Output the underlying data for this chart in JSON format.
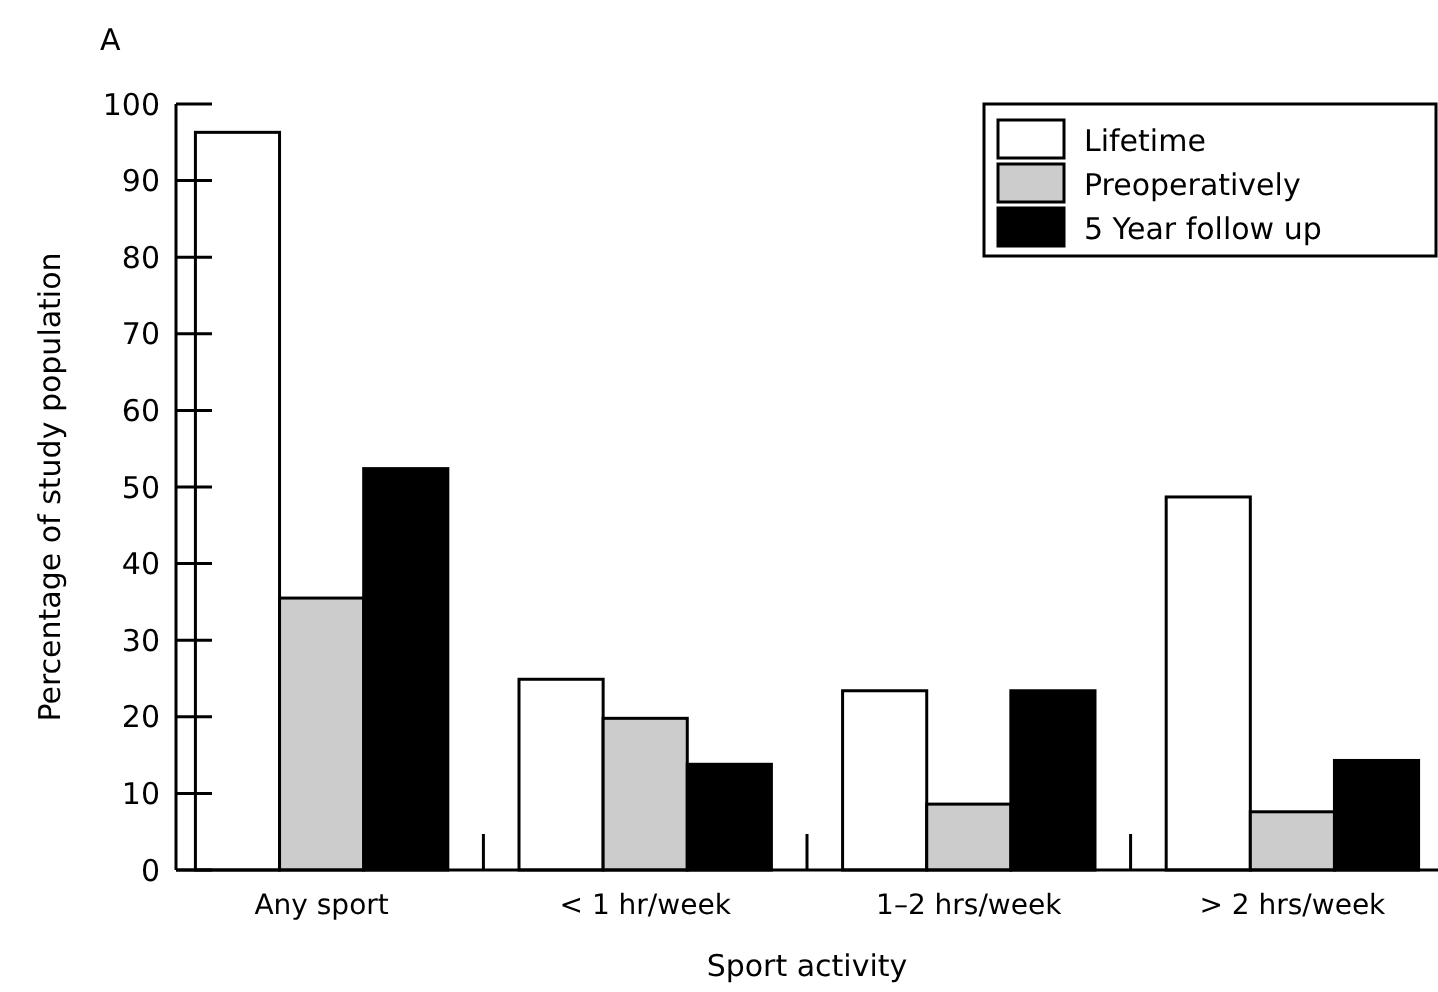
{
  "chart_data": {
    "type": "bar",
    "xlabel": "Sport activity",
    "ylabel": "Percentage of study population",
    "annotations": [
      "A"
    ],
    "categories": [
      "Any sport",
      "< 1 hr/week",
      "1–2 hrs/week",
      "> 2 hrs/week"
    ],
    "series": [
      {
        "name": "Lifetime",
        "color": "#ffffff",
        "values": [
          96.3,
          24.9,
          23.4,
          48.7
        ]
      },
      {
        "name": "Preoperatively",
        "color": "#cccccc",
        "values": [
          35.5,
          19.8,
          8.6,
          7.6
        ]
      },
      {
        "name": "5 Year follow up",
        "color": "#000000",
        "values": [
          52.4,
          13.8,
          23.4,
          14.3
        ]
      }
    ],
    "ylim": [
      0,
      100
    ],
    "yticks": [
      0,
      10,
      20,
      30,
      40,
      50,
      60,
      70,
      80,
      90,
      100
    ],
    "grid": false,
    "legend": "top right"
  }
}
